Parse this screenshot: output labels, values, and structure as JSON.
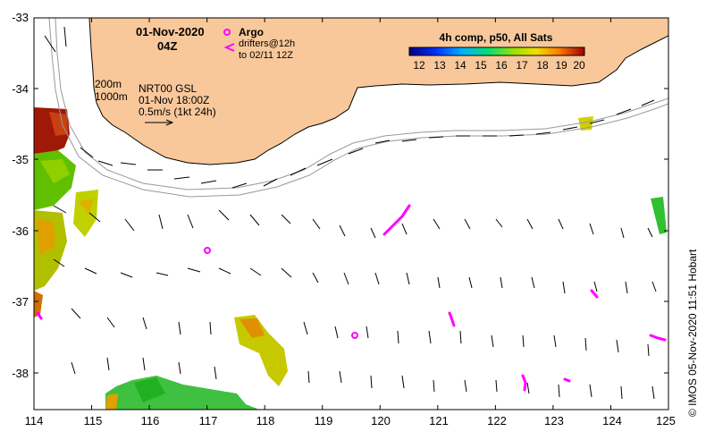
{
  "map": {
    "date": "01-Nov-2020",
    "hour": "04Z",
    "argo_label": "Argo",
    "drifters_label": "drifters@12h",
    "drifters_to": "to 02/11 12Z",
    "isobath_200": "200m",
    "isobath_1000": "1000m",
    "product": "NRT00 GSL",
    "product_time": "01-Nov 18:00Z",
    "scale_label": "0.5m/s (1kt 24h)",
    "colorbar_title": "4h comp, p50, All Sats",
    "colorbar_ticks": [
      "12",
      "13",
      "14",
      "15",
      "16",
      "17",
      "18",
      "19",
      "20"
    ],
    "x_ticks": [
      "114",
      "115",
      "116",
      "117",
      "118",
      "119",
      "120",
      "121",
      "122",
      "123",
      "124",
      "125"
    ],
    "y_ticks": [
      "-33",
      "-34",
      "-35",
      "-36",
      "-37",
      "-38"
    ],
    "credit": "© IMOS 05-Nov-2020 11:51 Hobart"
  },
  "colors": {
    "land": "#f8c89b",
    "argo": "#ff00ff",
    "drifter": "#ff00ff"
  }
}
